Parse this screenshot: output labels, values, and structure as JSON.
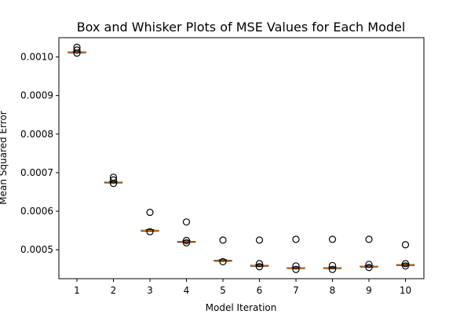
{
  "chart_data": {
    "type": "box",
    "title": "Box and Whisker Plots of MSE Values for Each Model",
    "xlabel": "Model Iteration",
    "ylabel": "Mean Squared Error",
    "categories": [
      "1",
      "2",
      "3",
      "4",
      "5",
      "6",
      "7",
      "8",
      "9",
      "10"
    ],
    "ylim": [
      0.000425,
      0.00105
    ],
    "yticks": [
      0.0005,
      0.0006,
      0.0007,
      0.0008,
      0.0009,
      0.001
    ],
    "ytick_labels": [
      "0.0005",
      "0.0006",
      "0.0007",
      "0.0008",
      "0.0009",
      "0.0010"
    ],
    "grid": false,
    "median_color": "#e07b00",
    "boxes": [
      {
        "category": "1",
        "whislo": 0.001011,
        "q1": 0.001012,
        "median": 0.0010125,
        "q3": 0.001013,
        "whishi": 0.001014,
        "fliers": [
          0.001025,
          0.001018,
          0.00101
        ]
      },
      {
        "category": "2",
        "whislo": 0.000673,
        "q1": 0.0006745,
        "median": 0.000675,
        "q3": 0.0006755,
        "whishi": 0.000677,
        "fliers": [
          0.000688,
          0.000681,
          0.000672
        ]
      },
      {
        "category": "3",
        "whislo": 0.000548,
        "q1": 0.0005495,
        "median": 0.00055,
        "q3": 0.0005505,
        "whishi": 0.000552,
        "fliers": [
          0.000597,
          0.000547
        ]
      },
      {
        "category": "4",
        "whislo": 0.000519,
        "q1": 0.0005205,
        "median": 0.000521,
        "q3": 0.0005215,
        "whishi": 0.000523,
        "fliers": [
          0.000572,
          0.000524,
          0.000518
        ]
      },
      {
        "category": "5",
        "whislo": 0.00047,
        "q1": 0.0004715,
        "median": 0.000472,
        "q3": 0.0004725,
        "whishi": 0.000474,
        "fliers": [
          0.000525,
          0.000469
        ]
      },
      {
        "category": "6",
        "whislo": 0.000457,
        "q1": 0.0004585,
        "median": 0.000459,
        "q3": 0.0004595,
        "whishi": 0.000461,
        "fliers": [
          0.000525,
          0.000464,
          0.000456
        ]
      },
      {
        "category": "7",
        "whislo": 0.000451,
        "q1": 0.0004525,
        "median": 0.000453,
        "q3": 0.0004535,
        "whishi": 0.000455,
        "fliers": [
          0.000527,
          0.000458,
          0.000449
        ]
      },
      {
        "category": "8",
        "whislo": 0.000451,
        "q1": 0.0004525,
        "median": 0.000453,
        "q3": 0.0004535,
        "whishi": 0.000455,
        "fliers": [
          0.000527,
          0.000459,
          0.000449
        ]
      },
      {
        "category": "9",
        "whislo": 0.000455,
        "q1": 0.0004565,
        "median": 0.000457,
        "q3": 0.0004575,
        "whishi": 0.000459,
        "fliers": [
          0.000527,
          0.000462,
          0.000454
        ]
      },
      {
        "category": "10",
        "whislo": 0.000459,
        "q1": 0.0004605,
        "median": 0.000461,
        "q3": 0.0004615,
        "whishi": 0.000463,
        "fliers": [
          0.000513,
          0.000464,
          0.000458
        ]
      }
    ]
  }
}
